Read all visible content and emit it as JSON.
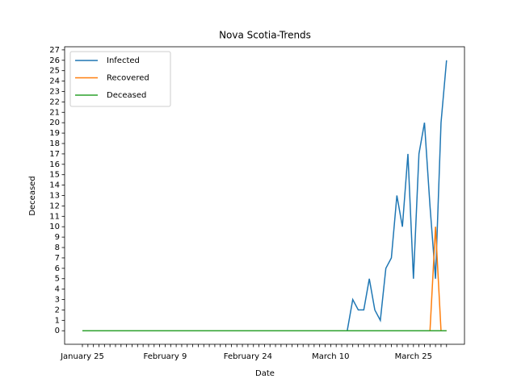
{
  "chart_data": {
    "type": "line",
    "title": "Nova Scotia-Trends",
    "xlabel": "Date",
    "ylabel": "Deceased",
    "categories": [
      "January 25",
      null,
      null,
      null,
      null,
      null,
      null,
      null,
      null,
      null,
      null,
      null,
      null,
      null,
      null,
      "February 9",
      null,
      null,
      null,
      null,
      null,
      null,
      null,
      null,
      null,
      null,
      null,
      null,
      null,
      null,
      "February 24",
      null,
      null,
      null,
      null,
      null,
      null,
      null,
      null,
      null,
      null,
      null,
      null,
      null,
      null,
      "March 10",
      null,
      null,
      null,
      null,
      null,
      null,
      null,
      null,
      null,
      null,
      null,
      null,
      null,
      null,
      "March 25",
      null,
      null,
      null,
      null,
      null,
      null
    ],
    "series": [
      {
        "name": "Infected",
        "color": "#1f77b4",
        "values": [
          0,
          0,
          0,
          0,
          0,
          0,
          0,
          0,
          0,
          0,
          0,
          0,
          0,
          0,
          0,
          0,
          0,
          0,
          0,
          0,
          0,
          0,
          0,
          0,
          0,
          0,
          0,
          0,
          0,
          0,
          0,
          0,
          0,
          0,
          0,
          0,
          0,
          0,
          0,
          0,
          0,
          0,
          0,
          0,
          0,
          0,
          0,
          0,
          0,
          3,
          2,
          2,
          5,
          2,
          1,
          6,
          7,
          13,
          10,
          17,
          5,
          17,
          20,
          12,
          5,
          20,
          26
        ]
      },
      {
        "name": "Recovered",
        "color": "#ff7f0e",
        "values": [
          0,
          0,
          0,
          0,
          0,
          0,
          0,
          0,
          0,
          0,
          0,
          0,
          0,
          0,
          0,
          0,
          0,
          0,
          0,
          0,
          0,
          0,
          0,
          0,
          0,
          0,
          0,
          0,
          0,
          0,
          0,
          0,
          0,
          0,
          0,
          0,
          0,
          0,
          0,
          0,
          0,
          0,
          0,
          0,
          0,
          0,
          0,
          0,
          0,
          0,
          0,
          0,
          0,
          0,
          0,
          0,
          0,
          0,
          0,
          0,
          0,
          0,
          0,
          0,
          10,
          0,
          0
        ]
      },
      {
        "name": "Deceased",
        "color": "#2ca02c",
        "values": [
          0,
          0,
          0,
          0,
          0,
          0,
          0,
          0,
          0,
          0,
          0,
          0,
          0,
          0,
          0,
          0,
          0,
          0,
          0,
          0,
          0,
          0,
          0,
          0,
          0,
          0,
          0,
          0,
          0,
          0,
          0,
          0,
          0,
          0,
          0,
          0,
          0,
          0,
          0,
          0,
          0,
          0,
          0,
          0,
          0,
          0,
          0,
          0,
          0,
          0,
          0,
          0,
          0,
          0,
          0,
          0,
          0,
          0,
          0,
          0,
          0,
          0,
          0,
          0,
          0,
          0,
          0
        ]
      }
    ],
    "ylim": [
      -1.3,
      27.3
    ],
    "yticks": [
      0,
      1,
      2,
      3,
      4,
      5,
      6,
      7,
      8,
      9,
      10,
      11,
      12,
      13,
      14,
      15,
      16,
      17,
      18,
      19,
      20,
      21,
      22,
      23,
      24,
      25,
      26,
      27
    ],
    "legend": "upper left"
  }
}
